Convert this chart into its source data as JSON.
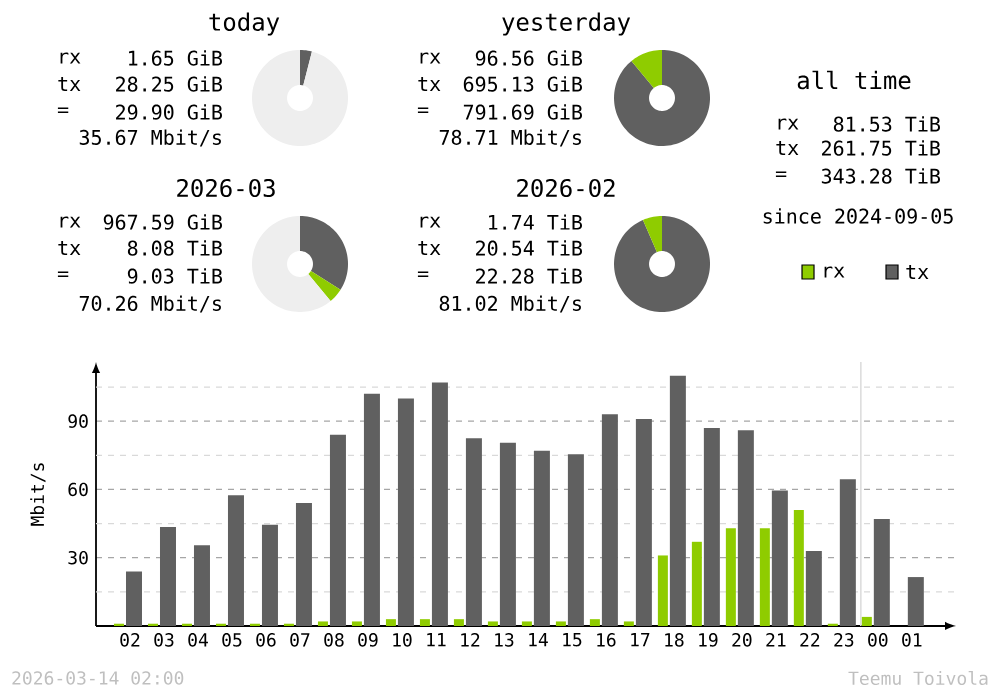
{
  "chart_data": [
    {
      "type": "donut",
      "title": "today",
      "categories": [
        null,
        null
      ],
      "values": [
        4,
        96
      ],
      "colors": [
        "#606060",
        "#eeeeee"
      ],
      "annotations": [
        "rx",
        "1.65 GiB",
        "tx",
        "28.25 GiB",
        "=",
        "29.90 GiB",
        "35.67 Mbit/s"
      ]
    },
    {
      "type": "donut",
      "title": "yesterday",
      "categories": [
        null,
        null
      ],
      "values": [
        89,
        11
      ],
      "colors": [
        "#606060",
        "#8fcc00"
      ],
      "annotations": [
        "rx",
        "96.56 GiB",
        "tx",
        "695.13 GiB",
        "=",
        "791.69 GiB",
        "78.71 Mbit/s"
      ]
    },
    {
      "type": "other",
      "title": "all time",
      "annotations": [
        "rx",
        "81.53 TiB",
        "tx",
        "261.75 TiB",
        "=",
        "343.28 TiB",
        "since 2024-09-05"
      ]
    },
    {
      "type": "donut",
      "title": "2026-03",
      "categories": [
        null,
        null,
        null
      ],
      "values": [
        34,
        5,
        61
      ],
      "colors": [
        "#606060",
        "#8fcc00",
        "#eeeeee"
      ],
      "annotations": [
        "rx",
        "967.59 GiB",
        "tx",
        "8.08 TiB",
        "=",
        "9.03 TiB",
        "70.26 Mbit/s"
      ]
    },
    {
      "type": "donut",
      "title": "2026-02",
      "categories": [
        null,
        null
      ],
      "values": [
        93.5,
        6.5
      ],
      "colors": [
        "#606060",
        "#8fcc00"
      ],
      "annotations": [
        "rx",
        "1.74 TiB",
        "tx",
        "20.54 TiB",
        "=",
        "22.28 TiB",
        "81.02 Mbit/s"
      ]
    },
    {
      "type": "bar",
      "ylabel": "Mbit/s",
      "categories": [
        "02",
        "03",
        "04",
        "05",
        "06",
        "07",
        "08",
        "09",
        "10",
        "11",
        "12",
        "13",
        "14",
        "15",
        "16",
        "17",
        "18",
        "19",
        "20",
        "21",
        "22",
        "23",
        "00",
        "01"
      ],
      "series": [
        {
          "name": "rx",
          "color": "#8fcc00",
          "values": [
            1,
            1,
            1,
            1,
            1,
            1,
            2,
            2,
            3,
            3,
            3,
            2,
            2,
            2,
            3,
            2,
            31,
            37,
            43,
            43,
            51,
            1,
            4,
            null
          ]
        },
        {
          "name": "tx",
          "color": "#606060",
          "values": [
            24,
            43.5,
            35.5,
            57.5,
            44.5,
            54,
            84,
            102,
            100,
            107,
            82.5,
            80.5,
            77,
            75.5,
            93,
            91,
            110,
            87,
            86,
            59.5,
            33,
            64.5,
            47,
            21.5
          ]
        }
      ],
      "ylim": [
        0,
        116
      ],
      "yticks": [
        {
          "value": 15,
          "label": null
        },
        30,
        {
          "value": 45,
          "label": null
        },
        60,
        {
          "value": 75,
          "label": null
        },
        90,
        {
          "value": 105,
          "label": null
        }
      ],
      "grid": "y",
      "legend": "top right",
      "ref_lines": [
        {
          "axis": "x",
          "value": "00",
          "color": "#dddddd"
        }
      ],
      "annotations": [
        "2026-03-14 02:00",
        "Teemu Toivola"
      ]
    }
  ]
}
